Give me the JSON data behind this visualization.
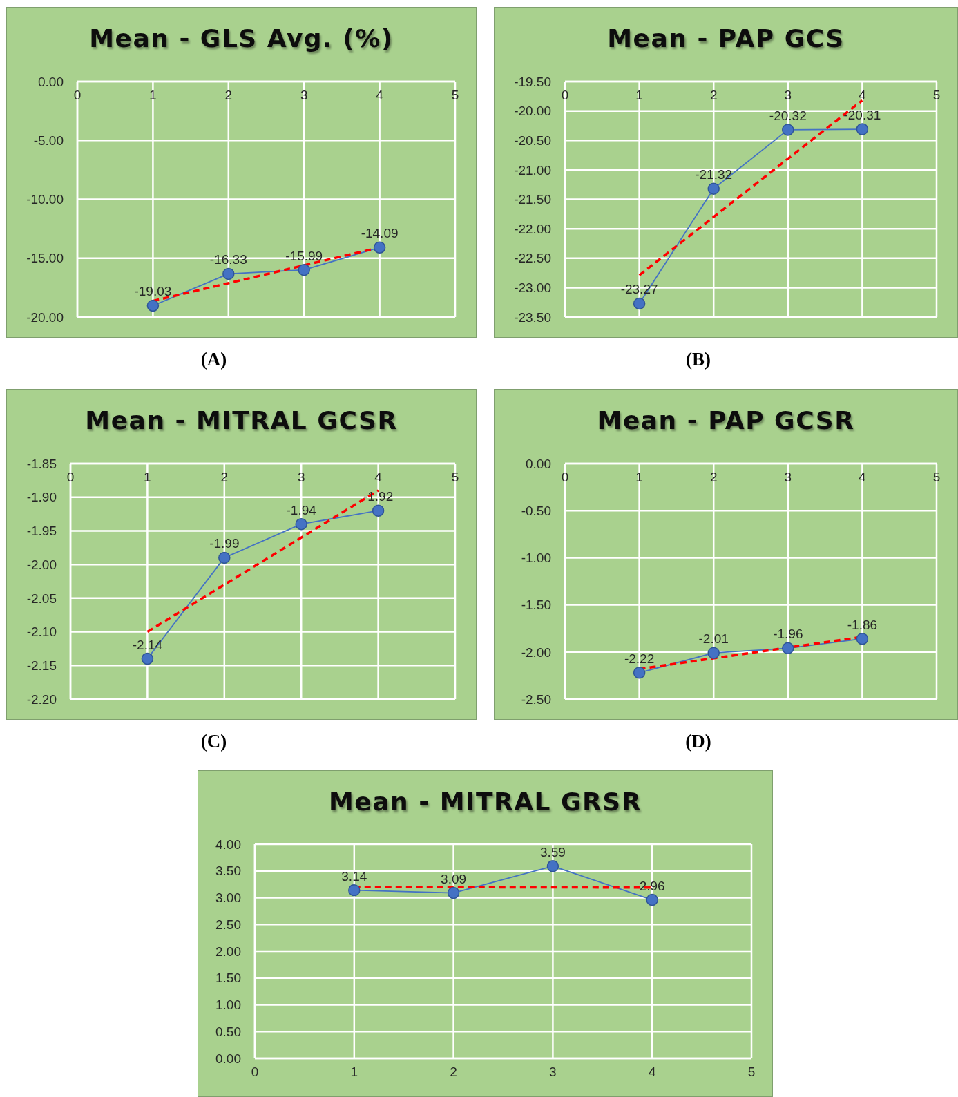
{
  "chart_data": [
    {
      "type": "line",
      "title": "Mean - GLS Avg. (%)",
      "annotations": [
        "(A)"
      ],
      "xlim": [
        0,
        5
      ],
      "xticks": [
        0,
        1,
        2,
        3,
        4,
        5
      ],
      "ylim": [
        -20,
        0
      ],
      "yticks": [
        {
          "value": -20,
          "label": "-20.00"
        },
        {
          "value": -15,
          "label": "-15.00"
        },
        {
          "value": -10,
          "label": "-10.00"
        },
        {
          "value": -5,
          "label": "-5.00"
        },
        {
          "value": 0,
          "label": "0.00"
        }
      ],
      "grid": true,
      "series": [
        {
          "x": [
            1,
            2,
            3,
            4
          ],
          "values": [
            -19.03,
            -16.33,
            -15.99,
            -14.09
          ],
          "color": "#4472c4",
          "marker": "circle",
          "data_labels": true
        },
        {
          "x": [
            1,
            4
          ],
          "values": [
            -18.63,
            -14.09
          ],
          "color": "#ff0000",
          "line_style": "dashed",
          "marker": "none"
        }
      ]
    },
    {
      "type": "line",
      "title": "Mean - PAP GCS",
      "annotations": [
        "(B)"
      ],
      "xlim": [
        0,
        5
      ],
      "xticks": [
        0,
        1,
        2,
        3,
        4,
        5
      ],
      "ylim": [
        -23.5,
        -19.5
      ],
      "yticks": [
        {
          "value": -23.5,
          "label": "-23.50"
        },
        {
          "value": -23,
          "label": "-23.00"
        },
        {
          "value": -22.5,
          "label": "-22.50"
        },
        {
          "value": -22,
          "label": "-22.00"
        },
        {
          "value": -21.5,
          "label": "-21.50"
        },
        {
          "value": -21,
          "label": "-21.00"
        },
        {
          "value": -20.5,
          "label": "-20.50"
        },
        {
          "value": -20,
          "label": "-20.00"
        },
        {
          "value": -19.5,
          "label": "-19.50"
        }
      ],
      "grid": true,
      "series": [
        {
          "x": [
            1,
            2,
            3,
            4
          ],
          "values": [
            -23.27,
            -21.32,
            -20.32,
            -20.31
          ],
          "color": "#4472c4",
          "marker": "circle",
          "data_labels": true
        },
        {
          "x": [
            1,
            4
          ],
          "values": [
            -22.79,
            -19.82
          ],
          "color": "#ff0000",
          "line_style": "dashed",
          "marker": "none"
        }
      ]
    },
    {
      "type": "line",
      "title": "Mean - MITRAL GCSR",
      "annotations": [
        "(C)"
      ],
      "xlim": [
        0,
        5
      ],
      "xticks": [
        0,
        1,
        2,
        3,
        4,
        5
      ],
      "ylim": [
        -2.2,
        -1.85
      ],
      "yticks": [
        {
          "value": -2.2,
          "label": "-2.20"
        },
        {
          "value": -2.15,
          "label": "-2.15"
        },
        {
          "value": -2.1,
          "label": "-2.10"
        },
        {
          "value": -2.05,
          "label": "-2.05"
        },
        {
          "value": -2,
          "label": "-2.00"
        },
        {
          "value": -1.95,
          "label": "-1.95"
        },
        {
          "value": -1.9,
          "label": "-1.90"
        },
        {
          "value": -1.85,
          "label": "-1.85"
        }
      ],
      "grid": true,
      "series": [
        {
          "x": [
            1,
            2,
            3,
            4
          ],
          "values": [
            -2.14,
            -1.99,
            -1.94,
            -1.92
          ],
          "color": "#4472c4",
          "marker": "circle",
          "data_labels": true
        },
        {
          "x": [
            1,
            4
          ],
          "values": [
            -2.1,
            -1.89
          ],
          "color": "#ff0000",
          "line_style": "dashed",
          "marker": "none"
        }
      ]
    },
    {
      "type": "line",
      "title": "Mean - PAP GCSR",
      "annotations": [
        "(D)"
      ],
      "xlim": [
        0,
        5
      ],
      "xticks": [
        0,
        1,
        2,
        3,
        4,
        5
      ],
      "ylim": [
        -2.5,
        0
      ],
      "yticks": [
        {
          "value": -2.5,
          "label": "-2.50"
        },
        {
          "value": -2,
          "label": "-2.00"
        },
        {
          "value": -1.5,
          "label": "-1.50"
        },
        {
          "value": -1,
          "label": "-1.00"
        },
        {
          "value": -0.5,
          "label": "-0.50"
        },
        {
          "value": 0,
          "label": "0.00"
        }
      ],
      "grid": true,
      "series": [
        {
          "x": [
            1,
            2,
            3,
            4
          ],
          "values": [
            -2.22,
            -2.01,
            -1.96,
            -1.86
          ],
          "color": "#4472c4",
          "marker": "circle",
          "data_labels": true
        },
        {
          "x": [
            1,
            4
          ],
          "values": [
            -2.18,
            -1.84
          ],
          "color": "#ff0000",
          "line_style": "dashed",
          "marker": "none"
        }
      ]
    },
    {
      "type": "line",
      "title": "Mean - MITRAL GRSR",
      "xlim": [
        0,
        5
      ],
      "xticks": [
        0,
        1,
        2,
        3,
        4,
        5
      ],
      "ylim": [
        0,
        4
      ],
      "yticks": [
        {
          "value": 0,
          "label": "0.00"
        },
        {
          "value": 0.5,
          "label": "0.50"
        },
        {
          "value": 1,
          "label": "1.00"
        },
        {
          "value": 1.5,
          "label": "1.50"
        },
        {
          "value": 2,
          "label": "2.00"
        },
        {
          "value": 2.5,
          "label": "2.50"
        },
        {
          "value": 3,
          "label": "3.00"
        },
        {
          "value": 3.5,
          "label": "3.50"
        },
        {
          "value": 4,
          "label": "4.00"
        }
      ],
      "grid": true,
      "series": [
        {
          "x": [
            1,
            2,
            3,
            4
          ],
          "values": [
            3.14,
            3.09,
            3.59,
            2.96
          ],
          "color": "#4472c4",
          "marker": "circle",
          "data_labels": true
        },
        {
          "x": [
            1,
            4
          ],
          "values": [
            3.2,
            3.19
          ],
          "color": "#ff0000",
          "line_style": "dashed",
          "marker": "none"
        }
      ]
    }
  ]
}
